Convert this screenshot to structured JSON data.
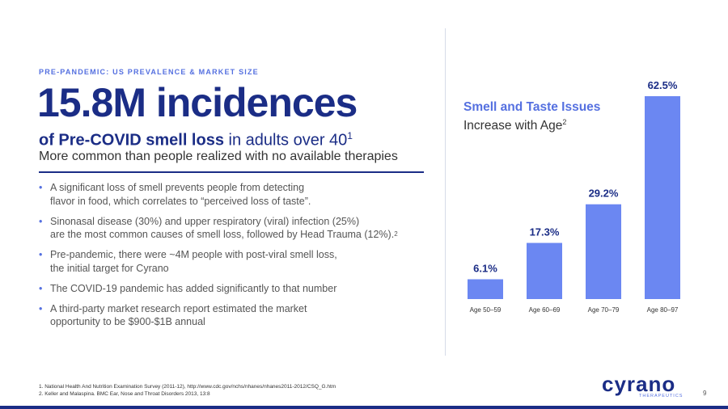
{
  "slide": {
    "eyebrow": "PRE-PANDEMIC: US PREVALENCE & MARKET SIZE",
    "headline": "15.8M incidences",
    "subline_strong": "of Pre-COVID smell loss",
    "subline_rest": " in adults over 40",
    "subline_sup": "1",
    "tagline": "More common than people realized with no available therapies",
    "bullets": [
      {
        "line1": "A significant loss of smell prevents people from detecting",
        "line2": "flavor in food, which correlates to “perceived loss of taste”.",
        "note": ""
      },
      {
        "line1": "Sinonasal disease (30%) and upper respiratory (viral) infection (25%)",
        "line2": "are the most common causes of smell loss, followed by Head Trauma (12%).",
        "note": "2"
      },
      {
        "line1": "Pre-pandemic, there were ~4M people with post-viral smell loss,",
        "line2": "the initial target for Cyrano",
        "note": ""
      },
      {
        "line1": "The COVID-19 pandemic has added significantly to that number",
        "line2": "",
        "note": ""
      },
      {
        "line1": "A third-party market research report estimated the market",
        "line2": "opportunity to be $900-$1B annual",
        "note": ""
      }
    ],
    "footnotes": [
      "1.  National Health And Nutrition Examination Survey (2011-12), http://www.cdc.gov/nchs/nhanes/nhanes2011-2012/CSQ_G.htm",
      "2.  Keller and Malaspina. BMC Ear, Nose and Throat Disorders 2013, 13:8"
    ],
    "logo": "cyrano",
    "logo_sub": "THERAPEUTICS",
    "page_number": "9",
    "bullet_glyph": "•"
  },
  "chart_data": {
    "type": "bar",
    "title": "Smell and Taste Issues",
    "subtitle": "Increase with Age",
    "subtitle_sup": "2",
    "categories": [
      "Age 50–59",
      "Age 60–69",
      "Age 70–79",
      "Age 80–97"
    ],
    "values": [
      6.1,
      17.3,
      29.2,
      62.5
    ],
    "value_labels": [
      "6.1%",
      "17.3%",
      "29.2%",
      "62.5%"
    ],
    "ylim": [
      0,
      62.5
    ],
    "grid": false,
    "legend": "none",
    "bar_color": "#6b87f2",
    "label_color": "#1b2d86"
  },
  "colors": {
    "navy": "#1b2d86",
    "accent": "#5570e0"
  }
}
